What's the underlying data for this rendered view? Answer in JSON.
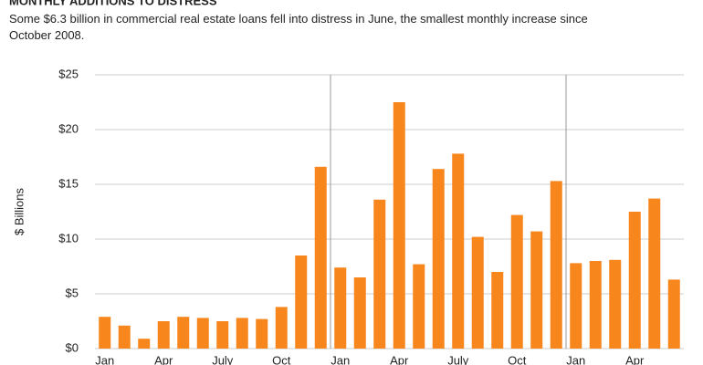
{
  "chart_data": {
    "type": "bar",
    "title": "MONTHLY ADDITIONS TO DISTRESS",
    "subtitle": "Some $6.3 billion in commercial real estate loans fell into distress in June, the smallest monthly increase since October 2008.",
    "y_label": "$ Billions",
    "categories": [
      "Jan",
      null,
      null,
      "Apr",
      null,
      null,
      "July",
      null,
      null,
      "Oct",
      null,
      null,
      "Jan",
      null,
      null,
      "Apr",
      null,
      null,
      "July",
      null,
      null,
      "Oct",
      null,
      null,
      "Jan",
      null,
      null,
      "Apr",
      null,
      null
    ],
    "values": [
      2.9,
      2.1,
      0.9,
      2.5,
      2.9,
      2.8,
      2.5,
      2.8,
      2.7,
      3.8,
      8.5,
      16.6,
      7.4,
      6.5,
      13.6,
      22.5,
      7.7,
      16.4,
      17.8,
      10.2,
      7.0,
      12.2,
      10.7,
      15.3,
      7.8,
      8.0,
      8.1,
      12.5,
      13.7,
      6.3
    ],
    "color": "#f7861c",
    "ylim": [
      0,
      25
    ],
    "yticks": [
      {
        "value": 0,
        "label": "$0"
      },
      {
        "value": 5,
        "label": "$5"
      },
      {
        "value": 10,
        "label": "$10"
      },
      {
        "value": 15,
        "label": "$15"
      },
      {
        "value": 20,
        "label": "$20"
      },
      {
        "value": 25,
        "label": "$25"
      }
    ],
    "grid": true
  }
}
